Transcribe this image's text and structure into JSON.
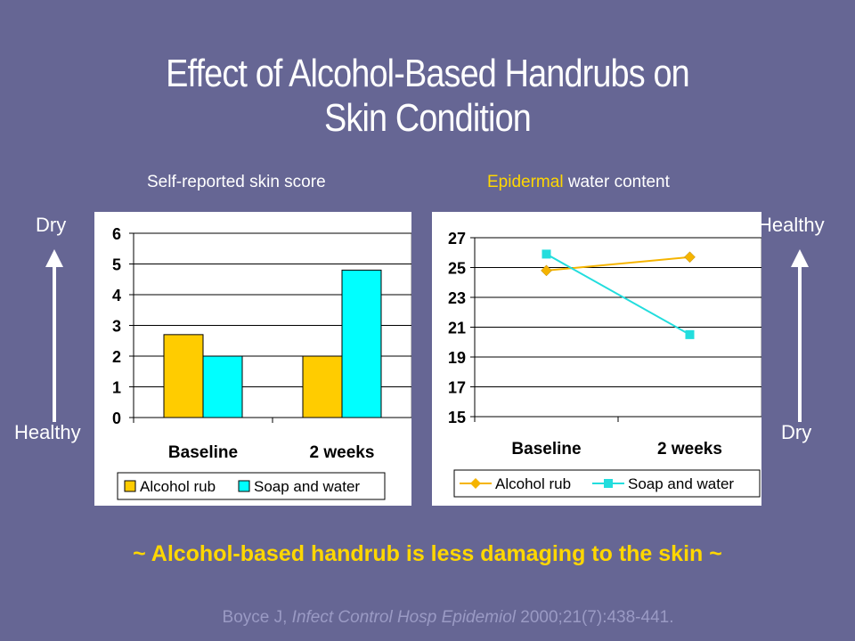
{
  "slide": {
    "title_line1": "Effect of Alcohol-Based Handrubs on",
    "title_line2": "Skin Condition",
    "conclusion": "~ Alcohol-based handrub is less damaging to the skin ~",
    "citation_pre": "Boyce J, ",
    "citation_journal": "Infect Control Hosp Epidemiol",
    "citation_post": " 2000;21(7):438-441."
  },
  "left_panel": {
    "subtitle": "Self-reported skin score",
    "top_label": "Dry",
    "bottom_label": "Healthy"
  },
  "right_panel": {
    "subtitle_highlight": "Epidermal",
    "subtitle_rest": " water content",
    "top_label": "Healthy",
    "bottom_label": "Dry"
  },
  "colors": {
    "background": "#666694",
    "alcohol_bar": "#ffcc00",
    "soap_bar": "#00ffff",
    "alcohol_line": "#f5b400",
    "soap_line": "#22dddd",
    "highlight": "#ffd700"
  },
  "chart_data": [
    {
      "type": "bar",
      "title": "Self-reported skin score",
      "categories": [
        "Baseline",
        "2 weeks"
      ],
      "series": [
        {
          "name": "Alcohol rub",
          "values": [
            2.7,
            2.0
          ]
        },
        {
          "name": "Soap and water",
          "values": [
            2.0,
            4.8
          ]
        }
      ],
      "yticks": [
        "0",
        "1",
        "2",
        "3",
        "4",
        "5",
        "6"
      ],
      "ylim": [
        0,
        6
      ],
      "grid": true,
      "legend": "bottom"
    },
    {
      "type": "line",
      "title": "Epidermal water content",
      "categories": [
        "Baseline",
        "2 weeks"
      ],
      "series": [
        {
          "name": "Alcohol rub",
          "values": [
            24.8,
            25.7
          ]
        },
        {
          "name": "Soap and water",
          "values": [
            25.9,
            20.5
          ]
        }
      ],
      "yticks": [
        "15",
        "17",
        "19",
        "21",
        "23",
        "25",
        "27"
      ],
      "ylim": [
        15,
        27
      ],
      "grid": true,
      "legend": "bottom"
    }
  ]
}
